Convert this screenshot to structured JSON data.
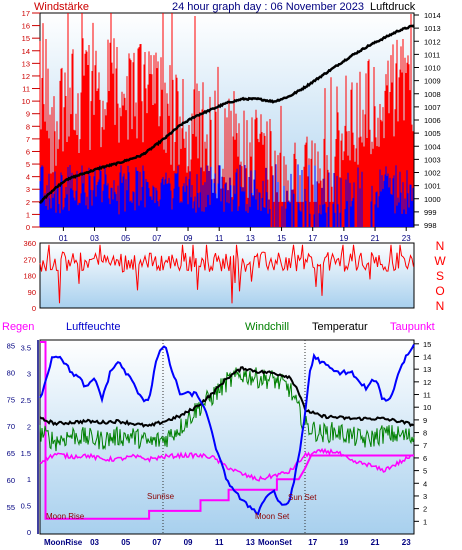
{
  "header": {
    "left_label": "Windstärke",
    "title": "24 hour graph day : 06 November 2023",
    "right_label": "Luftdruck"
  },
  "colors": {
    "wind_speed": "#ff0000",
    "wind_gust": "#0000ff",
    "pressure": "#000000",
    "wind_dir": "#ff0000",
    "humidity": "#0000ff",
    "windchill": "#008000",
    "temperature": "#000000",
    "dewpoint": "#ff00ff",
    "rain": "#ff00ff",
    "moon_sun_labels": "#8b0000",
    "axis_text_left": "#cc0000",
    "axis_text_time": "#000080",
    "hum_axis": "#000080",
    "direction_labels": "#ff0000",
    "plot_sky_top": "#ffffff",
    "plot_sky_bottom": "#a8d0ee"
  },
  "x_axis": {
    "hours": [
      "01",
      "03",
      "05",
      "07",
      "09",
      "11",
      "13",
      "15",
      "17",
      "19",
      "21",
      "23"
    ],
    "bottom_hours": [
      "03",
      "05",
      "07",
      "09",
      "11",
      "13",
      "17",
      "19",
      "21",
      "23"
    ]
  },
  "chart_data": [
    {
      "type": "line",
      "title": "24 hour graph day : 06 November 2023",
      "xlabel": "",
      "ylabel_left": "Windstärke",
      "ylabel_right": "Luftdruck",
      "x_range_hours": [
        0,
        24
      ],
      "left_ticks": [
        "0",
        "1",
        "2",
        "3",
        "4",
        "5",
        "6",
        "7",
        "8",
        "9",
        "10",
        "11",
        "12",
        "13",
        "14",
        "15",
        "16",
        "17"
      ],
      "right_ticks": [
        "998",
        "999",
        "1000",
        "1001",
        "1002",
        "1003",
        "1004",
        "1005",
        "1006",
        "1007",
        "1008",
        "1009",
        "1010",
        "1011",
        "1012",
        "1013",
        "1014"
      ],
      "ylim_left": [
        0,
        17
      ],
      "ylim_right": [
        998,
        1014
      ],
      "grid": false,
      "series": [
        {
          "name": "Luftdruck",
          "axis": "right",
          "x": [
            0,
            0.5,
            1,
            1.5,
            2,
            3,
            4,
            5,
            6,
            6.5,
            7,
            8,
            9,
            10,
            11,
            12,
            13,
            14,
            15,
            16,
            17,
            18,
            19,
            20,
            21,
            22,
            23,
            24
          ],
          "values": [
            999.7,
            1000.3,
            1000.8,
            1001.3,
            1001.6,
            1002.0,
            1002.4,
            1002.7,
            1003.1,
            1003.3,
            1003.7,
            1004.6,
            1005.6,
            1006.3,
            1006.8,
            1007.3,
            1007.6,
            1007.6,
            1007.4,
            1007.8,
            1008.5,
            1009.3,
            1010.1,
            1010.9,
            1011.6,
            1012.2,
            1012.8,
            1013.2
          ]
        }
      ]
    },
    {
      "type": "line",
      "title": "",
      "ylabel_left": "",
      "left_ticks": [
        "0",
        "90",
        "180",
        "270",
        "360"
      ],
      "direction_letters": [
        "N",
        "W",
        "S",
        "O",
        "N"
      ],
      "ylim": [
        0,
        360
      ],
      "grid": false
    },
    {
      "type": "line",
      "title": "",
      "labels": {
        "rain": "Regen",
        "humidity": "Luftfeuchte",
        "windchill": "Windchill",
        "temperature": "Temperatur",
        "dewpoint": "Taupunkt"
      },
      "x_range_hours": [
        0,
        24
      ],
      "rain_ticks": [
        "0",
        "0.5",
        "1",
        "1.5",
        "2",
        "2.5",
        "3",
        "3.5"
      ],
      "hum_ticks": [
        "55",
        "60",
        "65",
        "70",
        "75",
        "80",
        "85"
      ],
      "temp_ticks": [
        "1",
        "2",
        "3",
        "4",
        "5",
        "6",
        "7",
        "8",
        "9",
        "10",
        "11",
        "12",
        "13",
        "14",
        "15"
      ],
      "ylim_rain": [
        0,
        3.6
      ],
      "ylim_humidity": [
        50,
        86
      ],
      "ylim_temperature": [
        0,
        15.3
      ],
      "annotations": {
        "moonrise_top": "Moon Rise",
        "sunrise": "Sunrise",
        "sunset": "Sun Set",
        "moonset": "Moon Set",
        "moonrise_axis": "MoonRise",
        "moonset_axis": "MoonSet"
      },
      "series": [
        {
          "name": "Temperatur",
          "x": [
            0,
            1,
            2,
            3,
            4,
            5,
            6,
            7,
            8,
            9,
            10,
            11,
            12,
            13,
            14,
            15,
            16,
            16.5,
            17,
            18,
            19,
            20,
            21,
            22,
            23,
            24
          ],
          "values": [
            9.1,
            8.7,
            8.8,
            8.9,
            8.8,
            8.9,
            8.7,
            8.5,
            8.9,
            9.3,
            10.0,
            11.0,
            12.3,
            13.1,
            12.8,
            12.7,
            12.4,
            11.5,
            9.8,
            9.3,
            9.2,
            9.1,
            9.1,
            9.1,
            8.9,
            8.6
          ]
        },
        {
          "name": "Windchill",
          "x": [
            0,
            1,
            2,
            3,
            4,
            5,
            6,
            7,
            8,
            9,
            10,
            11,
            12,
            13,
            14,
            15,
            16,
            17,
            18,
            19,
            20,
            21,
            22,
            23,
            24
          ],
          "values": [
            8.0,
            7.3,
            7.8,
            7.6,
            7.4,
            7.7,
            7.7,
            7.2,
            7.5,
            8.4,
            9.8,
            10.8,
            12.0,
            12.6,
            12.3,
            12.2,
            11.5,
            8.6,
            7.9,
            8.1,
            7.7,
            7.4,
            7.9,
            7.8,
            7.6
          ]
        },
        {
          "name": "Taupunkt",
          "x": [
            0,
            0.5,
            1,
            2,
            3,
            4,
            5,
            6,
            7,
            8,
            9,
            10,
            11,
            12,
            13,
            14,
            15,
            16,
            17,
            18,
            19,
            20,
            21,
            22,
            23,
            24
          ],
          "values": [
            5.7,
            6.0,
            6.3,
            6.1,
            6.2,
            5.9,
            5.9,
            6.1,
            5.9,
            6.1,
            6.2,
            6.2,
            6.1,
            5.3,
            4.7,
            4.3,
            4.6,
            4.9,
            6.2,
            6.5,
            6.5,
            5.7,
            5.5,
            5.0,
            5.6,
            6.2
          ]
        },
        {
          "name": "Luftfeuchte",
          "x": [
            0,
            0.4,
            0.8,
            1.3,
            2,
            2.5,
            3,
            3.5,
            4,
            4.5,
            5,
            5.5,
            6,
            6.5,
            7,
            7.5,
            8,
            8.5,
            9,
            10,
            10.5,
            11,
            11.5,
            12,
            12.5,
            13,
            13.5,
            14,
            14.5,
            15,
            15.5,
            16,
            16.3,
            16.6,
            17,
            17.3,
            17.6,
            18,
            19,
            20,
            20.5,
            21,
            21.5,
            22,
            22.5,
            23,
            23.5,
            24
          ],
          "values": [
            75,
            79,
            83,
            83,
            80,
            79,
            77,
            79,
            75,
            80,
            82,
            80,
            78,
            75,
            75,
            83,
            85,
            80,
            76,
            76,
            74,
            69,
            64,
            60,
            58,
            56,
            55,
            54,
            57,
            58,
            55,
            56,
            60,
            64,
            72,
            80,
            83,
            82,
            80,
            80,
            78,
            77,
            79,
            75,
            75,
            80,
            83,
            85
          ]
        },
        {
          "name": "Regen",
          "step": true,
          "x": [
            0,
            0.35,
            0.35,
            7.0,
            7.0,
            10.3,
            10.3,
            12.1,
            12.1,
            15.2,
            15.2,
            16.6,
            16.6,
            17.0,
            17.0,
            17.4,
            17.4,
            24.0
          ],
          "values": [
            3.6,
            3.6,
            0.25,
            0.25,
            0.4,
            0.4,
            0.6,
            0.6,
            0.8,
            0.8,
            1.0,
            1.0,
            1.0,
            1.2,
            1.2,
            1.45,
            1.45,
            1.45
          ]
        }
      ]
    }
  ]
}
